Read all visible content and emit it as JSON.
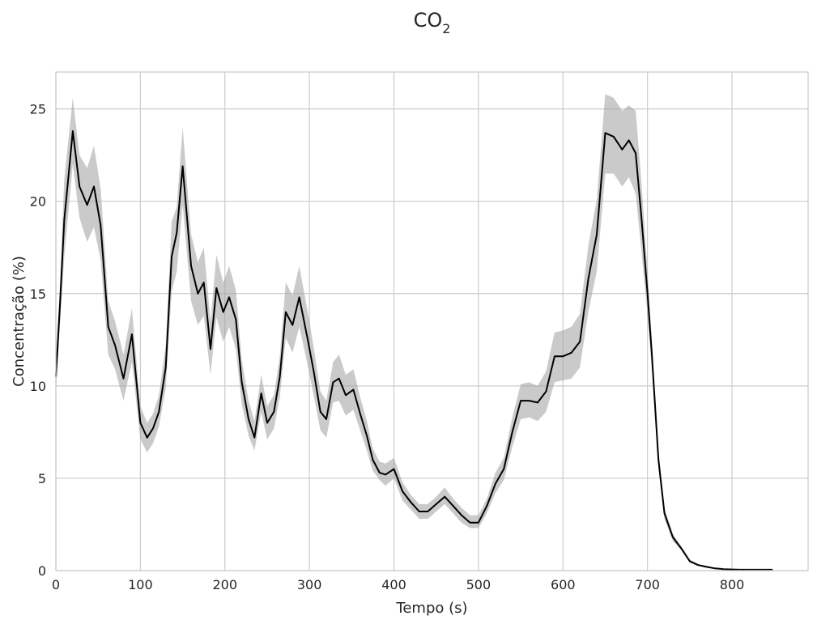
{
  "chart_data": {
    "type": "line",
    "title": {
      "main": "CO",
      "subscript": "2"
    },
    "xlabel": "Tempo (s)",
    "ylabel": "Concentração (%)",
    "xlim": [
      0,
      890
    ],
    "ylim": [
      0,
      27
    ],
    "xticks": [
      0,
      100,
      200,
      300,
      400,
      500,
      600,
      700,
      800
    ],
    "yticks": [
      0,
      5,
      10,
      15,
      20,
      25
    ],
    "grid": true,
    "series": [
      {
        "line_color": "#000000",
        "band_color": "#9e9e9e",
        "x": [
          0,
          5,
          10,
          20,
          28,
          37,
          45,
          53,
          62,
          70,
          80,
          90,
          100,
          108,
          115,
          122,
          130,
          137,
          143,
          150,
          160,
          168,
          175,
          183,
          190,
          198,
          205,
          213,
          220,
          228,
          235,
          243,
          250,
          258,
          265,
          272,
          280,
          288,
          298,
          305,
          313,
          320,
          328,
          335,
          343,
          352,
          360,
          368,
          375,
          383,
          390,
          400,
          410,
          420,
          430,
          440,
          450,
          460,
          470,
          480,
          490,
          500,
          510,
          520,
          530,
          540,
          550,
          560,
          570,
          580,
          590,
          600,
          610,
          620,
          630,
          640,
          650,
          660,
          670,
          678,
          686,
          693,
          700,
          705,
          713,
          720,
          730,
          740,
          750,
          760,
          770,
          780,
          790,
          800,
          810,
          820,
          830,
          840,
          848
        ],
        "y": [
          10.5,
          14.5,
          19.0,
          23.8,
          20.8,
          19.8,
          20.8,
          18.7,
          13.2,
          12.2,
          10.4,
          12.8,
          8.0,
          7.2,
          7.7,
          8.6,
          11.0,
          17.0,
          18.3,
          21.9,
          16.5,
          15.0,
          15.6,
          12.0,
          15.3,
          14.0,
          14.8,
          13.6,
          10.2,
          8.2,
          7.2,
          9.6,
          8.0,
          8.6,
          10.5,
          14.0,
          13.3,
          14.8,
          12.5,
          10.8,
          8.6,
          8.2,
          10.2,
          10.4,
          9.5,
          9.8,
          8.5,
          7.3,
          6.0,
          5.3,
          5.2,
          5.5,
          4.3,
          3.7,
          3.2,
          3.2,
          3.6,
          4.0,
          3.5,
          3.0,
          2.6,
          2.6,
          3.5,
          4.7,
          5.5,
          7.5,
          9.2,
          9.2,
          9.1,
          9.7,
          11.6,
          11.6,
          11.8,
          12.4,
          15.8,
          18.2,
          23.7,
          23.5,
          22.8,
          23.3,
          22.6,
          19.0,
          15.0,
          11.8,
          6.0,
          3.1,
          1.8,
          1.2,
          0.5,
          0.3,
          0.2,
          0.12,
          0.08,
          0.06,
          0.05,
          0.05,
          0.05,
          0.05,
          0.05
        ],
        "upper": [
          11.4,
          15.7,
          21.2,
          25.6,
          22.5,
          21.8,
          23.0,
          20.7,
          14.6,
          13.5,
          11.7,
          14.2,
          8.9,
          8.0,
          8.5,
          9.5,
          12.2,
          18.9,
          19.7,
          24.0,
          18.2,
          16.7,
          17.5,
          13.5,
          17.1,
          15.6,
          16.5,
          15.2,
          11.4,
          9.2,
          8.1,
          10.6,
          8.9,
          9.5,
          11.6,
          15.6,
          14.9,
          16.5,
          14.0,
          12.1,
          9.7,
          9.2,
          11.3,
          11.7,
          10.6,
          10.9,
          9.4,
          8.1,
          6.6,
          5.9,
          5.8,
          6.1,
          4.8,
          4.1,
          3.6,
          3.6,
          4.0,
          4.5,
          3.9,
          3.4,
          3.0,
          3.0,
          3.9,
          5.3,
          6.1,
          8.3,
          10.1,
          10.2,
          10.0,
          10.8,
          12.9,
          13.0,
          13.2,
          13.9,
          17.6,
          20.1,
          25.8,
          25.6,
          24.9,
          25.2,
          24.9,
          20.9,
          16.2,
          12.6,
          6.5,
          3.4,
          2.0,
          1.3,
          0.6,
          0.35,
          0.25,
          0.15,
          0.1,
          0.08,
          0.07,
          0.07,
          0.07,
          0.07,
          0.07
        ],
        "lower": [
          9.5,
          13.4,
          17.0,
          22.0,
          19.1,
          17.8,
          18.6,
          16.8,
          11.7,
          10.9,
          9.2,
          11.3,
          7.1,
          6.4,
          6.9,
          7.8,
          9.9,
          15.1,
          16.2,
          19.8,
          14.6,
          13.3,
          13.8,
          10.6,
          13.7,
          12.4,
          13.2,
          12.0,
          9.0,
          7.3,
          6.5,
          8.6,
          7.1,
          7.7,
          9.4,
          12.6,
          11.8,
          13.2,
          11.1,
          9.5,
          7.6,
          7.2,
          9.1,
          9.2,
          8.4,
          8.7,
          7.6,
          6.5,
          5.4,
          4.9,
          4.6,
          5.0,
          3.8,
          3.3,
          2.8,
          2.8,
          3.2,
          3.6,
          3.1,
          2.6,
          2.3,
          2.3,
          3.1,
          4.2,
          4.9,
          6.7,
          8.2,
          8.3,
          8.1,
          8.6,
          10.2,
          10.3,
          10.4,
          11.0,
          14.0,
          16.2,
          21.5,
          21.5,
          20.8,
          21.3,
          20.4,
          17.2,
          13.8,
          11.0,
          5.5,
          2.8,
          1.6,
          1.1,
          0.45,
          0.25,
          0.15,
          0.09,
          0.06,
          0.04,
          0.04,
          0.04,
          0.04,
          0.04,
          0.04
        ]
      }
    ]
  }
}
